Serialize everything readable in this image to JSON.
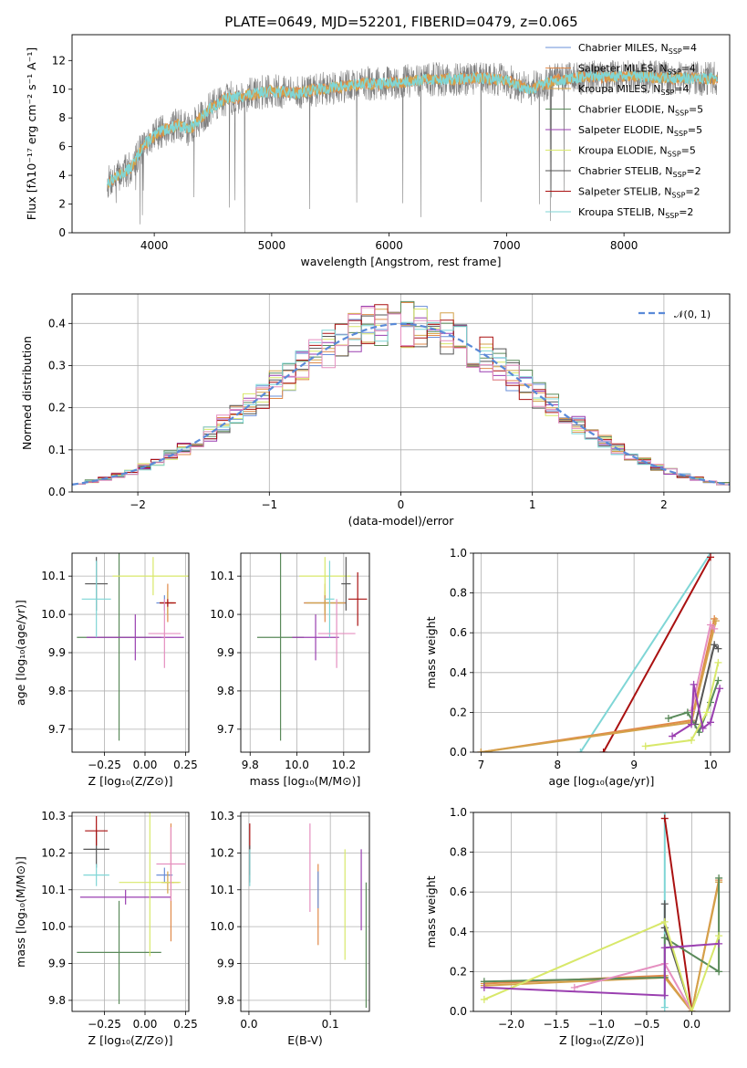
{
  "title": "PLATE=0649, MJD=52201, FIBERID=0479, z=0.065",
  "colors": {
    "data_gray": "#7f7f7f",
    "series": [
      "#6a8fd8",
      "#e08a4a",
      "#d4a24a",
      "#5a8a5a",
      "#9a3fb0",
      "#d8e86a",
      "#555555",
      "#aa1111",
      "#7fd6d6"
    ],
    "extra": [
      "#e58fc0"
    ],
    "gauss": "#5a8ad8",
    "grid": "#b0b0b0"
  },
  "chart_data": [
    {
      "id": "spectrum",
      "type": "line",
      "xlabel": "wavelength [Angstrom, rest frame]",
      "ylabel": "Flux [fλ10⁻¹⁷ erg cm⁻² s⁻¹ A⁻¹]",
      "xlim": [
        3300,
        8900
      ],
      "ylim": [
        0,
        13.8
      ],
      "xticks": [
        "4000",
        "5000",
        "6000",
        "7000",
        "8000"
      ],
      "xtick_values": [
        4000,
        5000,
        6000,
        7000,
        8000
      ],
      "yticks": [
        "0",
        "2",
        "4",
        "6",
        "8",
        "10",
        "12"
      ],
      "ytick_values": [
        0,
        2,
        4,
        6,
        8,
        10,
        12
      ],
      "data_range": [
        3600,
        8800
      ],
      "continuum": [
        [
          3600,
          3.5
        ],
        [
          3700,
          4.0
        ],
        [
          3800,
          4.5
        ],
        [
          3900,
          6.0
        ],
        [
          4000,
          6.8
        ],
        [
          4100,
          7.2
        ],
        [
          4200,
          7.5
        ],
        [
          4300,
          7.2
        ],
        [
          4400,
          8.0
        ],
        [
          4500,
          8.8
        ],
        [
          4600,
          9.3
        ],
        [
          4800,
          9.6
        ],
        [
          5000,
          9.9
        ],
        [
          5200,
          9.7
        ],
        [
          5400,
          10.0
        ],
        [
          5600,
          10.2
        ],
        [
          5800,
          10.4
        ],
        [
          6000,
          10.4
        ],
        [
          6200,
          10.6
        ],
        [
          6400,
          10.7
        ],
        [
          6600,
          10.7
        ],
        [
          6800,
          10.8
        ],
        [
          7000,
          10.6
        ],
        [
          7200,
          10.0
        ],
        [
          7400,
          10.6
        ],
        [
          7600,
          10.8
        ],
        [
          8000,
          10.9
        ],
        [
          8400,
          10.8
        ],
        [
          8800,
          10.7
        ]
      ],
      "legend": [
        {
          "name": "Chabrier MILES, N",
          "sub": "SSP",
          "tail": "=4"
        },
        {
          "name": "Salpeter MILES, N",
          "sub": "SSP",
          "tail": "=4"
        },
        {
          "name": "Kroupa MILES, N",
          "sub": "SSP",
          "tail": "=4"
        },
        {
          "name": "Chabrier ELODIE, N",
          "sub": "SSP",
          "tail": "=5"
        },
        {
          "name": "Salpeter ELODIE, N",
          "sub": "SSP",
          "tail": "=5"
        },
        {
          "name": "Kroupa ELODIE, N",
          "sub": "SSP",
          "tail": "=5"
        },
        {
          "name": "Chabrier STELIB, N",
          "sub": "SSP",
          "tail": "=2"
        },
        {
          "name": "Salpeter STELIB, N",
          "sub": "SSP",
          "tail": "=2"
        },
        {
          "name": "Kroupa STELIB, N",
          "sub": "SSP",
          "tail": "=2"
        }
      ]
    },
    {
      "id": "residuals",
      "type": "histogram",
      "xlabel": "(data-model)/error",
      "ylabel": "Normed distribution",
      "xlim": [
        -2.5,
        2.5
      ],
      "ylim": [
        0,
        0.47
      ],
      "xticks": [
        "−2",
        "−1",
        "0",
        "1",
        "2"
      ],
      "xtick_values": [
        -2,
        -1,
        0,
        1,
        2
      ],
      "yticks": [
        "0.0",
        "0.1",
        "0.2",
        "0.3",
        "0.4"
      ],
      "ytick_values": [
        0,
        0.1,
        0.2,
        0.3,
        0.4
      ],
      "legend": "𝒩(0, 1)"
    },
    {
      "id": "age-vs-Z",
      "type": "scatter",
      "xlabel": "Z [log₁₀(Z/Z⊙)]",
      "ylabel": "age  [log₁₀(age/yr)]",
      "xlim": [
        -0.45,
        0.27
      ],
      "ylim": [
        9.64,
        10.16
      ],
      "xticks": [
        "−0.25",
        "0.00",
        "0.25"
      ],
      "xtick_values": [
        -0.25,
        0,
        0.25
      ],
      "yticks": [
        "9.7",
        "9.8",
        "9.9",
        "10.0",
        "10.1"
      ],
      "ytick_values": [
        9.7,
        9.8,
        9.9,
        10.0,
        10.1
      ],
      "points": [
        {
          "x": 0.12,
          "y": 10.03,
          "xerr": 0.05,
          "yerr": 0.02,
          "c": 0
        },
        {
          "x": 0.14,
          "y": 10.03,
          "xerr": 0.05,
          "yerr": 0.05,
          "c": 1
        },
        {
          "x": 0.14,
          "y": 10.03,
          "xerr": 0.04,
          "yerr": 0.03,
          "c": 2
        },
        {
          "x": -0.16,
          "y": 9.94,
          "xerr": 0.26,
          "yerr": 0.27,
          "c": 3
        },
        {
          "x": -0.06,
          "y": 9.94,
          "xerr": 0.3,
          "yerr": 0.06,
          "c": 4
        },
        {
          "x": 0.05,
          "y": 10.1,
          "xerr": 0.25,
          "yerr": 0.05,
          "c": 5
        },
        {
          "x": -0.3,
          "y": 10.08,
          "xerr": 0.07,
          "yerr": 0.07,
          "c": 6
        },
        {
          "x": 0.14,
          "y": 10.03,
          "xerr": 0.05,
          "yerr": 0.01,
          "c": 7
        },
        {
          "x": -0.3,
          "y": 10.04,
          "xerr": 0.09,
          "yerr": 0.1,
          "c": 8
        },
        {
          "x": 0.12,
          "y": 9.95,
          "xerr": 0.1,
          "yerr": 0.09,
          "c": 9
        }
      ]
    },
    {
      "id": "age-vs-mass",
      "type": "scatter",
      "xlabel": "mass [log₁₀(M/M⊙)]",
      "xlim": [
        9.76,
        10.31
      ],
      "ylim": [
        9.64,
        10.16
      ],
      "xticks": [
        "9.8",
        "10.0",
        "10.2"
      ],
      "xtick_values": [
        9.8,
        10.0,
        10.2
      ],
      "yticks": [
        "9.7",
        "9.8",
        "9.9",
        "10.0",
        "10.1"
      ],
      "ytick_values": [
        9.7,
        9.8,
        9.9,
        10.0,
        10.1
      ],
      "points": [
        {
          "x": 10.12,
          "y": 10.03,
          "xerr": 0.09,
          "yerr": 0.02,
          "c": 0
        },
        {
          "x": 10.12,
          "y": 10.03,
          "xerr": 0.09,
          "yerr": 0.05,
          "c": 1
        },
        {
          "x": 10.12,
          "y": 10.03,
          "xerr": 0.08,
          "yerr": 0.03,
          "c": 2
        },
        {
          "x": 9.93,
          "y": 9.94,
          "xerr": 0.1,
          "yerr": 0.27,
          "c": 3
        },
        {
          "x": 10.08,
          "y": 9.94,
          "xerr": 0.1,
          "yerr": 0.06,
          "c": 4
        },
        {
          "x": 10.12,
          "y": 10.1,
          "xerr": 0.11,
          "yerr": 0.05,
          "c": 5
        },
        {
          "x": 10.21,
          "y": 10.08,
          "xerr": 0.02,
          "yerr": 0.07,
          "c": 6
        },
        {
          "x": 10.26,
          "y": 10.04,
          "xerr": 0.04,
          "yerr": 0.07,
          "c": 7
        },
        {
          "x": 10.14,
          "y": 10.04,
          "xerr": 0.02,
          "yerr": 0.1,
          "c": 8
        },
        {
          "x": 10.17,
          "y": 9.95,
          "xerr": 0.08,
          "yerr": 0.09,
          "c": 9
        }
      ]
    },
    {
      "id": "mass-weight-vs-age",
      "type": "line",
      "xlabel": "age  [log₁₀(age/yr)]",
      "ylabel": "mass weight",
      "xlim": [
        6.9,
        10.25
      ],
      "ylim": [
        0,
        1.0
      ],
      "xticks": [
        "7",
        "8",
        "9",
        "10"
      ],
      "xtick_values": [
        7,
        8,
        9,
        10
      ],
      "yticks": [
        "0.0",
        "0.2",
        "0.4",
        "0.6",
        "0.8",
        "1.0"
      ],
      "ytick_values": [
        0,
        0.2,
        0.4,
        0.6,
        0.8,
        1.0
      ],
      "series": [
        {
          "c": 8,
          "points": [
            [
              8.3,
              0
            ],
            [
              10.0,
              1.0
            ]
          ]
        },
        {
          "c": 7,
          "points": [
            [
              8.6,
              0
            ],
            [
              10.0,
              0.98
            ]
          ]
        },
        {
          "c": 1,
          "points": [
            [
              7.0,
              0
            ],
            [
              9.75,
              0.16
            ],
            [
              10.05,
              0.67
            ]
          ]
        },
        {
          "c": 2,
          "points": [
            [
              7.0,
              0
            ],
            [
              9.75,
              0.15
            ],
            [
              10.07,
              0.66
            ]
          ]
        },
        {
          "c": 9,
          "points": [
            [
              9.75,
              0.21
            ],
            [
              10.0,
              0.64
            ],
            [
              10.05,
              0.62
            ]
          ]
        },
        {
          "c": 6,
          "points": [
            [
              9.8,
              0.14
            ],
            [
              10.05,
              0.54
            ],
            [
              10.1,
              0.52
            ]
          ]
        },
        {
          "c": 3,
          "points": [
            [
              9.45,
              0.17
            ],
            [
              9.7,
              0.2
            ],
            [
              9.85,
              0.1
            ],
            [
              10.0,
              0.25
            ],
            [
              10.1,
              0.36
            ]
          ]
        },
        {
          "c": 5,
          "points": [
            [
              9.15,
              0.03
            ],
            [
              9.75,
              0.06
            ],
            [
              9.95,
              0.2
            ],
            [
              10.1,
              0.45
            ]
          ]
        },
        {
          "c": 4,
          "points": [
            [
              9.5,
              0.08
            ],
            [
              9.75,
              0.14
            ],
            [
              9.78,
              0.34
            ],
            [
              9.9,
              0.12
            ],
            [
              10.0,
              0.15
            ],
            [
              10.12,
              0.32
            ]
          ]
        }
      ]
    },
    {
      "id": "mass-vs-Z",
      "type": "scatter",
      "xlabel": "Z [log₁₀(Z/Z⊙)]",
      "ylabel": "mass [log₁₀(M/M⊙)]",
      "xlim": [
        -0.45,
        0.27
      ],
      "ylim": [
        9.77,
        10.31
      ],
      "xticks": [
        "−0.25",
        "0.00",
        "0.25"
      ],
      "xtick_values": [
        -0.25,
        0,
        0.25
      ],
      "yticks": [
        "9.8",
        "9.9",
        "10.0",
        "10.1",
        "10.2",
        "10.3"
      ],
      "ytick_values": [
        9.8,
        9.9,
        10.0,
        10.1,
        10.2,
        10.3
      ],
      "points": [
        {
          "x": 0.12,
          "y": 10.14,
          "xerr": 0.05,
          "yerr": 0.02,
          "c": 0
        },
        {
          "x": 0.16,
          "y": 10.12,
          "xerr": 0.05,
          "yerr": 0.16,
          "c": 1
        },
        {
          "x": 0.14,
          "y": 10.12,
          "xerr": 0.04,
          "yerr": 0.03,
          "c": 2
        },
        {
          "x": -0.16,
          "y": 9.93,
          "xerr": 0.26,
          "yerr": 0.14,
          "c": 3
        },
        {
          "x": -0.12,
          "y": 10.08,
          "xerr": 0.28,
          "yerr": 0.02,
          "c": 4
        },
        {
          "x": 0.03,
          "y": 10.12,
          "xerr": 0.19,
          "yerr": 0.2,
          "c": 5
        },
        {
          "x": -0.3,
          "y": 10.21,
          "xerr": 0.08,
          "yerr": 0.05,
          "c": 6
        },
        {
          "x": -0.3,
          "y": 10.26,
          "xerr": 0.07,
          "yerr": 0.04,
          "c": 7
        },
        {
          "x": -0.3,
          "y": 10.14,
          "xerr": 0.08,
          "yerr": 0.03,
          "c": 8
        },
        {
          "x": 0.16,
          "y": 10.17,
          "xerr": 0.09,
          "yerr": 0.1,
          "c": 9
        }
      ]
    },
    {
      "id": "mass-vs-ebv",
      "type": "scatter",
      "xlabel": "E(B-V)",
      "xlim": [
        -0.01,
        0.148
      ],
      "ylim": [
        9.77,
        10.31
      ],
      "xticks": [
        "0.0",
        "0.1"
      ],
      "xtick_values": [
        0,
        0.1
      ],
      "yticks": [
        "9.8",
        "9.9",
        "10.0",
        "10.1",
        "10.2",
        "10.3"
      ],
      "ytick_values": [
        9.8,
        9.9,
        10.0,
        10.1,
        10.2,
        10.3
      ],
      "points": [
        {
          "x": 0.001,
          "y": 10.21,
          "yerr": 0.07,
          "c": 7
        },
        {
          "x": 0.001,
          "y": 10.17,
          "yerr": 0.05,
          "c": 6
        },
        {
          "x": 0.001,
          "y": 10.16,
          "yerr": 0.05,
          "c": 8
        },
        {
          "x": 0.075,
          "y": 10.16,
          "yerr": 0.12,
          "c": 9
        },
        {
          "x": 0.085,
          "y": 10.06,
          "yerr": 0.11,
          "c": 1
        },
        {
          "x": 0.085,
          "y": 10.1,
          "yerr": 0.05,
          "c": 0
        },
        {
          "x": 0.118,
          "y": 10.06,
          "yerr": 0.15,
          "c": 5
        },
        {
          "x": 0.138,
          "y": 10.1,
          "yerr": 0.11,
          "c": 4
        },
        {
          "x": 0.144,
          "y": 9.95,
          "yerr": 0.17,
          "c": 3
        }
      ]
    },
    {
      "id": "mass-weight-vs-Z",
      "type": "line",
      "xlabel": "Z [log₁₀(Z/Z⊙)]",
      "ylabel": "mass weight",
      "xlim": [
        -2.42,
        0.42
      ],
      "ylim": [
        0,
        1.0
      ],
      "xticks": [
        "−2.0",
        "−1.5",
        "−1.0",
        "−0.5",
        "0.0"
      ],
      "xtick_values": [
        -2,
        -1.5,
        -1,
        -0.5,
        0
      ],
      "yticks": [
        "0.0",
        "0.2",
        "0.4",
        "0.6",
        "0.8",
        "1.0"
      ],
      "ytick_values": [
        0,
        0.2,
        0.4,
        0.6,
        0.8,
        1.0
      ],
      "series": [
        {
          "c": 8,
          "points": [
            [
              -0.3,
              0.02
            ],
            [
              -0.3,
              1.0
            ]
          ]
        },
        {
          "c": 7,
          "points": [
            [
              -0.3,
              0.97
            ],
            [
              0.0,
              0.0
            ]
          ]
        },
        {
          "c": 1,
          "points": [
            [
              -2.3,
              0.14
            ],
            [
              -0.3,
              0.18
            ],
            [
              0.0,
              0.0
            ],
            [
              0.3,
              0.66
            ]
          ]
        },
        {
          "c": 2,
          "points": [
            [
              -2.3,
              0.13
            ],
            [
              -0.3,
              0.17
            ],
            [
              0.0,
              0.0
            ],
            [
              0.3,
              0.65
            ]
          ]
        },
        {
          "c": 3,
          "points": [
            [
              -2.3,
              0.15
            ],
            [
              -0.3,
              0.17
            ],
            [
              -0.3,
              0.37
            ],
            [
              0.3,
              0.2
            ],
            [
              0.3,
              0.67
            ]
          ]
        },
        {
          "c": 6,
          "points": [
            [
              -0.3,
              0.54
            ],
            [
              -0.3,
              0.42
            ],
            [
              0.0,
              0.0
            ]
          ]
        },
        {
          "c": 9,
          "points": [
            [
              -1.3,
              0.12
            ],
            [
              -0.3,
              0.24
            ],
            [
              0.0,
              0.0
            ]
          ]
        },
        {
          "c": 5,
          "points": [
            [
              -2.3,
              0.06
            ],
            [
              -0.3,
              0.45
            ],
            [
              0.0,
              0.0
            ],
            [
              0.3,
              0.38
            ]
          ]
        },
        {
          "c": 4,
          "points": [
            [
              -2.3,
              0.12
            ],
            [
              -0.3,
              0.08
            ],
            [
              -0.3,
              0.32
            ],
            [
              0.3,
              0.34
            ]
          ]
        }
      ]
    }
  ]
}
